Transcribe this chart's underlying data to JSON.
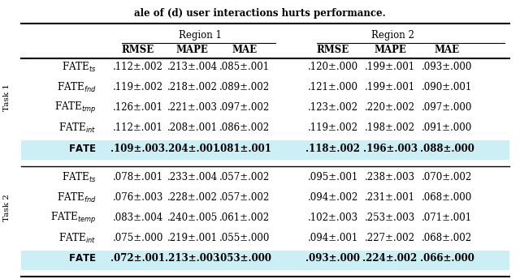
{
  "title": "ale of (d) user interactions hurts performance.",
  "region1_header": "Region 1",
  "region2_header": "Region 2",
  "col_headers": [
    "RMSE",
    "MAPE",
    "MAE",
    "RMSE",
    "MAPE",
    "MAE"
  ],
  "task1_rows": [
    {
      "subscript": "ts",
      "values": [
        ".112±.002",
        ".213±.004",
        ".085±.001",
        ".120±.000",
        ".199±.001",
        ".093±.000"
      ],
      "bold": false
    },
    {
      "subscript": "fnd",
      "values": [
        ".119±.002",
        ".218±.002",
        ".089±.002",
        ".121±.000",
        ".199±.001",
        ".090±.001"
      ],
      "bold": false
    },
    {
      "subscript": "tmp",
      "values": [
        ".126±.001",
        ".221±.003",
        ".097±.002",
        ".123±.002",
        ".220±.002",
        ".097±.000"
      ],
      "bold": false
    },
    {
      "subscript": "int",
      "values": [
        ".112±.001",
        ".208±.001",
        ".086±.002",
        ".119±.002",
        ".198±.002",
        ".091±.000"
      ],
      "bold": false
    },
    {
      "subscript": "",
      "values": [
        ".109±.003",
        ".204±.001",
        ".081±.001",
        ".118±.002",
        ".196±.003",
        ".088±.000"
      ],
      "bold": true
    }
  ],
  "task2_rows": [
    {
      "subscript": "ts",
      "values": [
        ".078±.001",
        ".233±.004",
        ".057±.002",
        ".095±.001",
        ".238±.003",
        ".070±.002"
      ],
      "bold": false
    },
    {
      "subscript": "fnd",
      "values": [
        ".076±.003",
        ".228±.002",
        ".057±.002",
        ".094±.002",
        ".231±.001",
        ".068±.000"
      ],
      "bold": false
    },
    {
      "subscript": "temp",
      "values": [
        ".083±.004",
        ".240±.005",
        ".061±.002",
        ".102±.003",
        ".253±.003",
        ".071±.001"
      ],
      "bold": false
    },
    {
      "subscript": "int",
      "values": [
        ".075±.000",
        ".219±.001",
        ".055±.000",
        ".094±.001",
        ".227±.002",
        ".068±.002"
      ],
      "bold": false
    },
    {
      "subscript": "",
      "values": [
        ".072±.001",
        ".213±.003",
        ".053±.000",
        ".093±.000",
        ".224±.002",
        ".066±.000"
      ],
      "bold": true
    }
  ],
  "highlight_color": "#cceef5",
  "bg_color": "#ffffff"
}
